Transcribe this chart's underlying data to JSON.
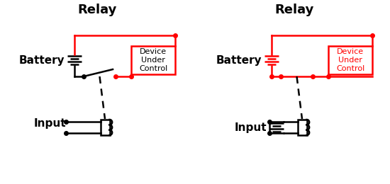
{
  "title1": "Relay",
  "title2": "Relay",
  "label_battery1": "Battery",
  "label_battery2": "Battery",
  "label_input1": "Input",
  "label_input2": "Input",
  "label_device": "Device\nUnder\nControl",
  "bg_color": "#ffffff",
  "black": "#000000",
  "red": "#ff0000",
  "title_fontsize": 13,
  "label_fontsize": 11,
  "lw": 1.8
}
